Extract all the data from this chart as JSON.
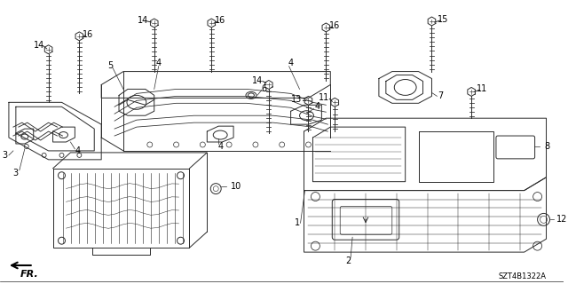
{
  "background_color": "#ffffff",
  "diagram_id": "SZT4B1322A",
  "line_color": "#2a2a2a",
  "text_color": "#000000",
  "fr_label": "FR.",
  "figsize": [
    6.4,
    3.2
  ],
  "dpi": 100
}
